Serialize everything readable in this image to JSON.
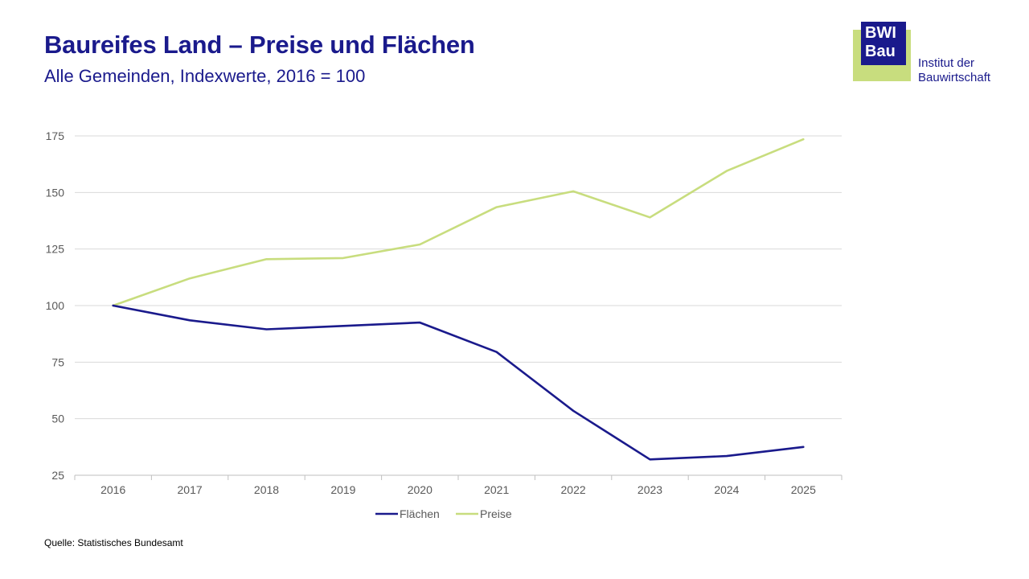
{
  "header": {
    "title": "Baureifes Land – Preise und Flächen",
    "subtitle": "Alle Gemeinden, Indexwerte, 2016 = 100"
  },
  "logo": {
    "line1": "BWI",
    "line2": "Bau",
    "text_line1": "Institut der",
    "text_line2": "Bauwirtschaft",
    "colors": {
      "blue": "#1a1a8c",
      "green": "#c8dd7e"
    }
  },
  "footer": {
    "source": "Quelle: Statistisches Bundesamt"
  },
  "chart_data": {
    "type": "line",
    "categories": [
      "2016",
      "2017",
      "2018",
      "2019",
      "2020",
      "2021",
      "2022",
      "2023",
      "2024",
      "2025"
    ],
    "series": [
      {
        "name": "Flächen",
        "color": "#1a1a8c",
        "values": [
          100,
          93.5,
          89.5,
          91,
          92.5,
          79.5,
          53.5,
          32,
          33.5,
          37.5
        ]
      },
      {
        "name": "Preise",
        "color": "#c8dd7e",
        "values": [
          100,
          112,
          120.5,
          121,
          127,
          143.5,
          150.5,
          139,
          159.5,
          173.5
        ]
      }
    ],
    "ylim": [
      25,
      175
    ],
    "yticks": [
      25,
      50,
      75,
      100,
      125,
      150,
      175
    ],
    "grid": true,
    "legend_position": "bottom"
  }
}
